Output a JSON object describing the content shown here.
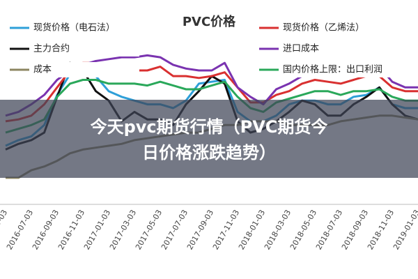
{
  "chart_data": {
    "type": "line",
    "title": "PVC价格",
    "categories": [
      "2016-05-03",
      null,
      "2016-07-03",
      null,
      "2016-09-03",
      null,
      "2016-11-03",
      null,
      "2017-01-03",
      null,
      "2017-03-03",
      null,
      "2017-05-03",
      null,
      "2017-07-03",
      null,
      "2017-09-03",
      null,
      "2017-11-03",
      null,
      "2018-01-03",
      null,
      "2018-03-03",
      null,
      "2018-05-03",
      null,
      "2018-07-03",
      null,
      "2018-09-03",
      null,
      "2018-11-03",
      null,
      "2019-01-03"
    ],
    "ylim": [
      0,
      100
    ],
    "series": [
      {
        "name": "现货价格（电石法）",
        "color": "#2e9fd8",
        "values": [
          30,
          33,
          35,
          41,
          57,
          68,
          70,
          67,
          59,
          56,
          54,
          52,
          52,
          50,
          54,
          63,
          64,
          65,
          48,
          43,
          43,
          46,
          52,
          54,
          54,
          52,
          52,
          56,
          57,
          61,
          52,
          50,
          50
        ]
      },
      {
        "name": "主力合约",
        "color": "#111111",
        "values": [
          28,
          31,
          33,
          37,
          56,
          74,
          70,
          59,
          54,
          43,
          48,
          44,
          44,
          41,
          52,
          59,
          67,
          63,
          43,
          37,
          39,
          43,
          48,
          54,
          52,
          46,
          46,
          52,
          56,
          61,
          52,
          46,
          44
        ]
      },
      {
        "name": "成本",
        "color": "#8c8560",
        "values": [
          13,
          13,
          17,
          19,
          22,
          26,
          28,
          29,
          30,
          31,
          33,
          34,
          35,
          36,
          37,
          37,
          39,
          41,
          41,
          43,
          43,
          43,
          41,
          41,
          41,
          41,
          43,
          44,
          45,
          46,
          46,
          45,
          44
        ]
      },
      {
        "name": "现货价格（乙烯法）",
        "color": "#d93030",
        "values": [
          43,
          44,
          46,
          52,
          61,
          70,
          74,
          74,
          72,
          72,
          70,
          70,
          72,
          67,
          67,
          66,
          67,
          69,
          61,
          53,
          53,
          57,
          59,
          63,
          65,
          64,
          63,
          65,
          67,
          67,
          61,
          59,
          59
        ]
      },
      {
        "name": "进口成本",
        "color": "#7a33b0",
        "values": [
          46,
          48,
          52,
          57,
          65,
          70,
          73,
          75,
          76,
          77,
          77,
          78,
          77,
          73,
          71,
          70,
          70,
          74,
          61,
          56,
          52,
          60,
          63,
          67,
          69,
          69,
          67,
          70,
          70,
          72,
          64,
          61,
          61
        ]
      },
      {
        "name": "国内价格上限：出口利润",
        "color": "#2aa85a",
        "values": [
          37,
          39,
          41,
          44,
          56,
          63,
          65,
          65,
          63,
          63,
          63,
          62,
          64,
          62,
          60,
          60,
          62,
          64,
          56,
          50,
          48,
          53,
          55,
          57,
          59,
          59,
          57,
          59,
          59,
          60,
          56,
          54,
          54
        ]
      }
    ],
    "overlay_title": [
      "今天pvc期货行情（PVC期货今",
      "日价格涨跌趋势）"
    ]
  }
}
